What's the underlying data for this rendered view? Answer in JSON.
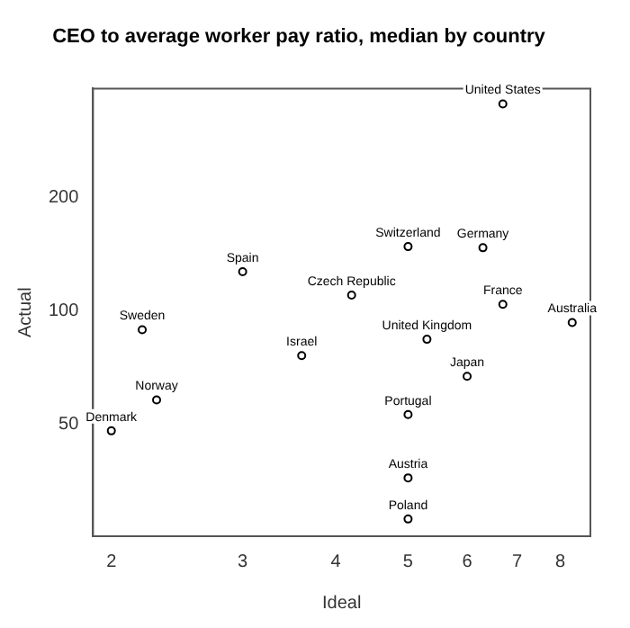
{
  "chart_data": {
    "type": "scatter",
    "title": "CEO to average worker pay ratio, median by country",
    "xlabel": "Ideal",
    "ylabel": "Actual",
    "log": "xy",
    "marker": "circle",
    "x": [
      6.7,
      5.0,
      6.3,
      3.0,
      4.2,
      6.7,
      8.3,
      2.2,
      5.3,
      3.6,
      6.0,
      2.3,
      5.0,
      2.0,
      5.0,
      5.0
    ],
    "series": [
      {
        "color": "#000000",
        "values": [
          354,
          148,
          147,
          127,
          110,
          104,
          93,
          89,
          84,
          76,
          67,
          58,
          53,
          48,
          36,
          28
        ]
      }
    ],
    "xlim": [
      1.89,
      8.78
    ],
    "ylim": [
      25.2,
      389
    ],
    "xticks": [
      2,
      3,
      4,
      5,
      6,
      7,
      8
    ],
    "yticks": [
      50,
      100,
      200
    ],
    "annotations": [
      {
        "text": "United States",
        "x": 6.7,
        "y": 354
      },
      {
        "text": "Switzerland",
        "x": 5.0,
        "y": 148
      },
      {
        "text": "Germany",
        "x": 6.3,
        "y": 147
      },
      {
        "text": "Spain",
        "x": 3.0,
        "y": 127
      },
      {
        "text": "Czech Republic",
        "x": 4.2,
        "y": 110
      },
      {
        "text": "France",
        "x": 6.7,
        "y": 104
      },
      {
        "text": "Australia",
        "x": 8.3,
        "y": 93
      },
      {
        "text": "Sweden",
        "x": 2.2,
        "y": 89
      },
      {
        "text": "United Kingdom",
        "x": 5.3,
        "y": 84
      },
      {
        "text": "Israel",
        "x": 3.6,
        "y": 76
      },
      {
        "text": "Japan",
        "x": 6.0,
        "y": 67
      },
      {
        "text": "Norway",
        "x": 2.3,
        "y": 58
      },
      {
        "text": "Portugal",
        "x": 5.0,
        "y": 53
      },
      {
        "text": "Denmark",
        "x": 2.0,
        "y": 48
      },
      {
        "text": "Austria",
        "x": 5.0,
        "y": 36
      },
      {
        "text": "Poland",
        "x": 5.0,
        "y": 28
      }
    ]
  }
}
